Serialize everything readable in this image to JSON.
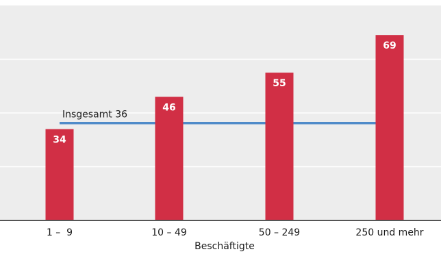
{
  "chart_data": {
    "type": "bar",
    "categories": [
      "1 –  9",
      "10 – 49",
      "50 – 249",
      "250 und mehr"
    ],
    "values": [
      34,
      46,
      55,
      69
    ],
    "xlabel": "Beschäftigte",
    "ylabel": "",
    "ylim": [
      0,
      80
    ],
    "grid": true,
    "reference_line": {
      "value": 36,
      "label": "Insgesamt 36"
    },
    "colors": {
      "background": "#ededed",
      "grid": "#ffffff",
      "bar": "#d12f45",
      "reference_line": "#4f8bc9",
      "axis": "#555555"
    }
  }
}
